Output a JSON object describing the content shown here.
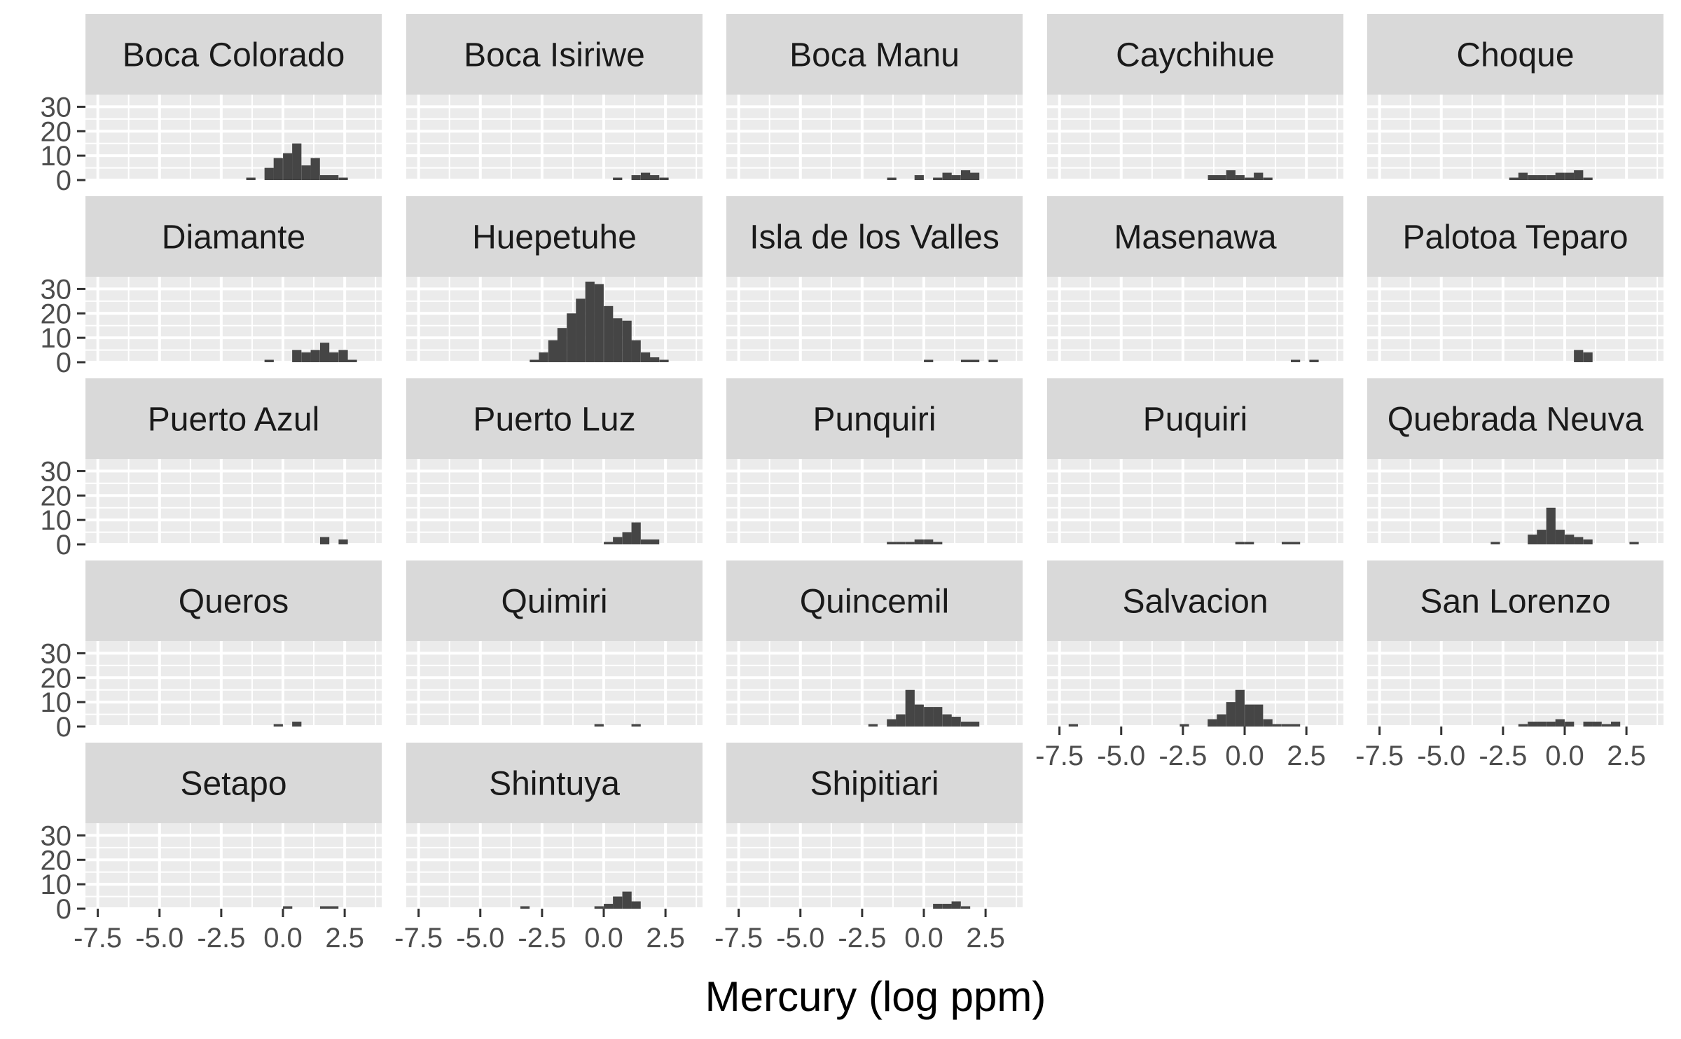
{
  "chart_data": {
    "type": "bar",
    "subtype": "faceted-histogram",
    "xlabel": "Mercury (log ppm)",
    "ylabel": "",
    "xlim": [
      -8,
      4
    ],
    "ylim": [
      0,
      35
    ],
    "x_ticks": [
      -7.5,
      -5.0,
      -2.5,
      0.0,
      2.5
    ],
    "x_tick_labels": [
      "-7.5",
      "-5.0",
      "-2.5",
      "0.0",
      "2.5"
    ],
    "y_ticks": [
      0,
      10,
      20,
      30
    ],
    "y_tick_labels": [
      "0",
      "10",
      "20",
      "30"
    ],
    "bin_width": 0.375,
    "grid": true,
    "bar_color": "#454545",
    "panel_background": "#ebebeb",
    "strip_background": "#d9d9d9",
    "facets": [
      {
        "name": "Boca Colorado",
        "bins": [
          [
            -1.3,
            1
          ],
          [
            -0.56,
            5
          ],
          [
            -0.19,
            9
          ],
          [
            0.19,
            11
          ],
          [
            0.56,
            15
          ],
          [
            0.94,
            6
          ],
          [
            1.31,
            9
          ],
          [
            1.69,
            2
          ],
          [
            2.06,
            2
          ],
          [
            2.44,
            1
          ]
        ]
      },
      {
        "name": "Boca Isiriwe",
        "bins": [
          [
            0.56,
            1
          ],
          [
            1.31,
            2
          ],
          [
            1.69,
            3
          ],
          [
            2.06,
            2
          ],
          [
            2.44,
            1
          ]
        ]
      },
      {
        "name": "Boca Manu",
        "bins": [
          [
            -1.3,
            1
          ],
          [
            -0.19,
            2
          ],
          [
            0.56,
            1
          ],
          [
            0.94,
            3
          ],
          [
            1.31,
            2
          ],
          [
            1.69,
            4
          ],
          [
            2.06,
            3
          ]
        ]
      },
      {
        "name": "Caychihue",
        "bins": [
          [
            -1.3,
            2
          ],
          [
            -0.94,
            2
          ],
          [
            -0.56,
            4
          ],
          [
            -0.19,
            2
          ],
          [
            0.19,
            1
          ],
          [
            0.56,
            3
          ],
          [
            0.94,
            1
          ]
        ]
      },
      {
        "name": "Choque",
        "bins": [
          [
            -2.06,
            1
          ],
          [
            -1.69,
            3
          ],
          [
            -1.31,
            2
          ],
          [
            -0.94,
            2
          ],
          [
            -0.56,
            2
          ],
          [
            -0.19,
            3
          ],
          [
            0.19,
            3
          ],
          [
            0.56,
            4
          ],
          [
            0.94,
            1
          ]
        ]
      },
      {
        "name": "Diamante",
        "bins": [
          [
            -0.56,
            1
          ],
          [
            0.56,
            5
          ],
          [
            0.94,
            4
          ],
          [
            1.31,
            5
          ],
          [
            1.69,
            8
          ],
          [
            2.06,
            4
          ],
          [
            2.44,
            5
          ],
          [
            2.81,
            1
          ]
        ]
      },
      {
        "name": "Huepetuhe",
        "bins": [
          [
            -2.81,
            1
          ],
          [
            -2.44,
            4
          ],
          [
            -2.06,
            9
          ],
          [
            -1.69,
            14
          ],
          [
            -1.31,
            20
          ],
          [
            -0.94,
            26
          ],
          [
            -0.56,
            33
          ],
          [
            -0.19,
            32
          ],
          [
            0.19,
            23
          ],
          [
            0.56,
            18
          ],
          [
            0.94,
            17
          ],
          [
            1.31,
            9
          ],
          [
            1.69,
            4
          ],
          [
            2.06,
            2
          ],
          [
            2.44,
            1
          ]
        ]
      },
      {
        "name": "Isla de los Valles",
        "bins": [
          [
            0.19,
            1
          ],
          [
            1.69,
            1
          ],
          [
            2.06,
            1
          ],
          [
            2.81,
            1
          ]
        ]
      },
      {
        "name": "Masenawa",
        "bins": [
          [
            2.06,
            1
          ],
          [
            2.81,
            1
          ]
        ]
      },
      {
        "name": "Palotoa Teparo",
        "bins": [
          [
            0.56,
            5
          ],
          [
            0.94,
            4
          ]
        ]
      },
      {
        "name": "Puerto Azul",
        "bins": [
          [
            1.69,
            3
          ],
          [
            2.44,
            2
          ]
        ]
      },
      {
        "name": "Puerto Luz",
        "bins": [
          [
            0.19,
            1
          ],
          [
            0.56,
            3
          ],
          [
            0.94,
            5
          ],
          [
            1.31,
            9
          ],
          [
            1.69,
            2
          ],
          [
            2.06,
            2
          ]
        ]
      },
      {
        "name": "Punquiri",
        "bins": [
          [
            -1.31,
            1
          ],
          [
            -0.94,
            1
          ],
          [
            -0.56,
            1
          ],
          [
            -0.19,
            2
          ],
          [
            0.19,
            2
          ],
          [
            0.56,
            1
          ]
        ]
      },
      {
        "name": "Puquiri",
        "bins": [
          [
            -0.19,
            1
          ],
          [
            0.19,
            1
          ],
          [
            1.69,
            1
          ],
          [
            2.06,
            1
          ]
        ]
      },
      {
        "name": "Quebrada Neuva",
        "bins": [
          [
            -2.81,
            1
          ],
          [
            -1.31,
            4
          ],
          [
            -0.94,
            6
          ],
          [
            -0.56,
            15
          ],
          [
            -0.19,
            6
          ],
          [
            0.19,
            4
          ],
          [
            0.56,
            3
          ],
          [
            0.94,
            2
          ],
          [
            2.81,
            1
          ]
        ]
      },
      {
        "name": "Queros",
        "bins": [
          [
            -0.19,
            1
          ],
          [
            0.56,
            2
          ]
        ]
      },
      {
        "name": "Quimiri",
        "bins": [
          [
            -0.19,
            1
          ],
          [
            1.31,
            1
          ]
        ]
      },
      {
        "name": "Quincemil",
        "bins": [
          [
            -2.06,
            1
          ],
          [
            -1.31,
            3
          ],
          [
            -0.94,
            5
          ],
          [
            -0.56,
            15
          ],
          [
            -0.19,
            9
          ],
          [
            0.19,
            8
          ],
          [
            0.56,
            8
          ],
          [
            0.94,
            5
          ],
          [
            1.31,
            4
          ],
          [
            1.69,
            2
          ],
          [
            2.06,
            2
          ]
        ]
      },
      {
        "name": "Salvacion",
        "bins": [
          [
            -6.94,
            1
          ],
          [
            -2.44,
            1
          ],
          [
            -1.31,
            3
          ],
          [
            -0.94,
            5
          ],
          [
            -0.56,
            10
          ],
          [
            -0.19,
            15
          ],
          [
            0.19,
            9
          ],
          [
            0.56,
            9
          ],
          [
            0.94,
            3
          ],
          [
            1.31,
            1
          ],
          [
            1.69,
            1
          ],
          [
            2.06,
            1
          ]
        ]
      },
      {
        "name": "San Lorenzo",
        "bins": [
          [
            -1.69,
            1
          ],
          [
            -1.31,
            2
          ],
          [
            -0.94,
            2
          ],
          [
            -0.56,
            2
          ],
          [
            -0.19,
            3
          ],
          [
            0.19,
            2
          ],
          [
            0.94,
            2
          ],
          [
            1.31,
            2
          ],
          [
            1.69,
            1
          ],
          [
            2.06,
            2
          ]
        ]
      },
      {
        "name": "Setapo",
        "bins": [
          [
            0.19,
            1
          ],
          [
            1.69,
            1
          ],
          [
            2.06,
            1
          ]
        ]
      },
      {
        "name": "Shintuya",
        "bins": [
          [
            -3.19,
            1
          ],
          [
            -0.19,
            1
          ],
          [
            0.19,
            2
          ],
          [
            0.56,
            5
          ],
          [
            0.94,
            7
          ],
          [
            1.31,
            3
          ]
        ]
      },
      {
        "name": "Shipitiari",
        "bins": [
          [
            0.56,
            2
          ],
          [
            0.94,
            2
          ],
          [
            1.31,
            3
          ],
          [
            1.69,
            1
          ]
        ]
      }
    ]
  }
}
